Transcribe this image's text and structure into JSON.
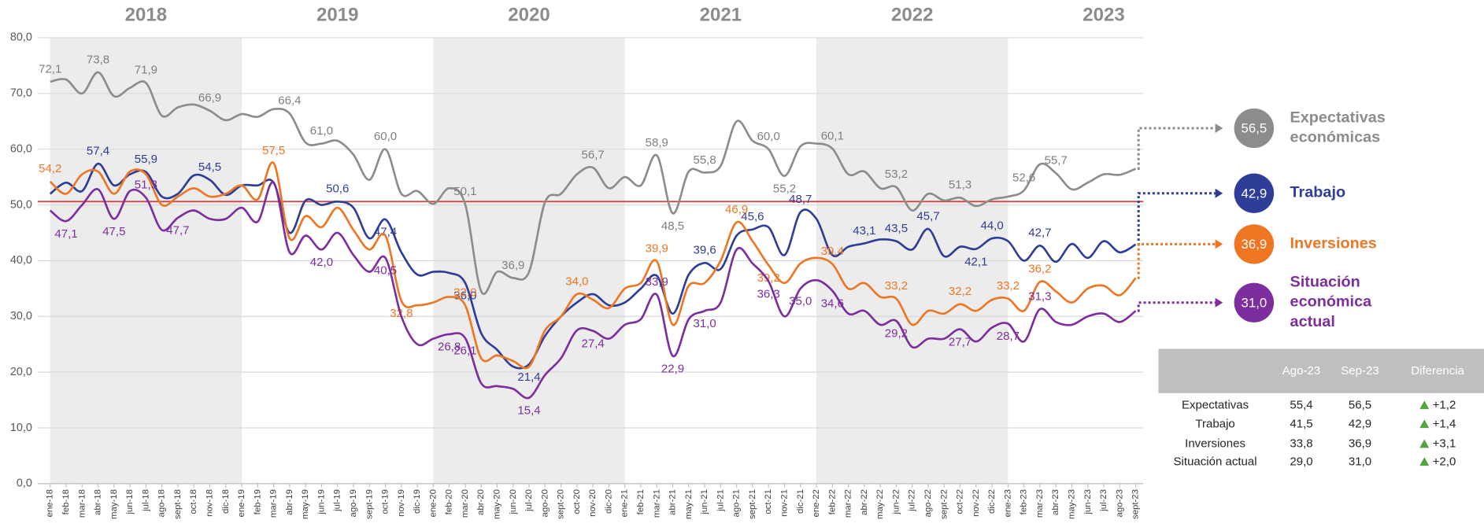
{
  "chart_data": {
    "type": "line",
    "year_labels": [
      "2018",
      "2019",
      "2020",
      "2021",
      "2022",
      "2023"
    ],
    "categories": [
      "ene-18",
      "feb-18",
      "mar-18",
      "abr-18",
      "may-18",
      "jun-18",
      "jul-18",
      "ago-18",
      "sept-18",
      "oct-18",
      "nov-18",
      "dic-18",
      "ene-19",
      "feb-19",
      "mar-19",
      "abr-19",
      "may-19",
      "jun-19",
      "jul-19",
      "ago-19",
      "sept-19",
      "oct-19",
      "nov-19",
      "dic-19",
      "ene-20",
      "feb-20",
      "mar-20",
      "abr-20",
      "may-20",
      "jun-20",
      "jul-20",
      "ago-20",
      "sept-20",
      "oct-20",
      "nov-20",
      "dic-20",
      "ene-21",
      "feb-21",
      "mar-21",
      "abr-21",
      "may-21",
      "jun-21",
      "jul-21",
      "ago-21",
      "sept-21",
      "oct-21",
      "nov-21",
      "dic-21",
      "ene-22",
      "feb-22",
      "mar-22",
      "abr-22",
      "may-22",
      "jun-22",
      "jul-22",
      "ago-22",
      "sept-22",
      "oct-22",
      "nov-22",
      "dic-22",
      "ene-23",
      "feb-23",
      "mar-23",
      "abr-23",
      "may-23",
      "jun-23",
      "jul-23",
      "ago-23",
      "sept-23"
    ],
    "ylim": [
      0,
      80
    ],
    "yticks": [
      {
        "value": 0,
        "label": "0,0"
      },
      {
        "value": 10,
        "label": "10,0"
      },
      {
        "value": 20,
        "label": "20,0"
      },
      {
        "value": 30,
        "label": "30,0"
      },
      {
        "value": 40,
        "label": "40,0"
      },
      {
        "value": 50,
        "label": "50,0"
      },
      {
        "value": 60,
        "label": "60,0"
      },
      {
        "value": 70,
        "label": "70,0"
      },
      {
        "value": 80,
        "label": "80,0"
      }
    ],
    "grid": true,
    "reference_line": 50.6,
    "reference_color": "#e03c3c",
    "series": [
      {
        "name": "Expectativas económicas",
        "color": "#8c8c8c",
        "values": [
          72.1,
          72.5,
          70.0,
          73.8,
          69.5,
          71.0,
          71.9,
          66.0,
          67.5,
          68.0,
          66.9,
          65.2,
          66.3,
          65.8,
          67.2,
          66.4,
          61.2,
          61.0,
          61.5,
          59.0,
          54.5,
          60.0,
          52.0,
          52.5,
          50.2,
          53.0,
          50.1,
          34.5,
          38.0,
          36.9,
          38.0,
          50.5,
          52.0,
          55.5,
          56.7,
          53.0,
          55.0,
          53.5,
          58.9,
          48.5,
          56.0,
          55.8,
          57.0,
          65.0,
          61.5,
          60.0,
          55.2,
          60.5,
          61.0,
          60.1,
          55.5,
          56.0,
          53.0,
          53.2,
          49.0,
          52.0,
          50.8,
          51.3,
          49.8,
          51.0,
          51.5,
          52.6,
          57.3,
          55.7,
          52.8,
          54.0,
          55.5,
          55.4,
          56.5
        ],
        "value_labels": [
          "72,1",
          null,
          null,
          "73,8",
          null,
          null,
          "71,9",
          null,
          null,
          null,
          "66,9",
          null,
          null,
          null,
          null,
          "66,4",
          null,
          "61,0",
          null,
          null,
          null,
          "60,0",
          null,
          null,
          null,
          null,
          "50,1",
          null,
          null,
          "36,9",
          null,
          null,
          null,
          null,
          "56,7",
          null,
          null,
          null,
          "58,9",
          "48,5",
          null,
          "55,8",
          null,
          null,
          null,
          "60,0",
          "55,2",
          null,
          null,
          "60,1",
          null,
          null,
          null,
          "53,2",
          null,
          null,
          null,
          "51,3",
          null,
          null,
          null,
          "52,6",
          null,
          "55,7",
          null,
          null,
          null,
          null,
          "56,5"
        ]
      },
      {
        "name": "Trabajo",
        "color": "#2e3d98",
        "values": [
          52.0,
          54.0,
          52.5,
          57.4,
          53.5,
          55.5,
          55.9,
          51.5,
          52.0,
          55.3,
          54.5,
          51.8,
          53.5,
          53.5,
          54.0,
          45.0,
          50.8,
          50.0,
          50.6,
          49.5,
          44.0,
          47.4,
          41.5,
          37.5,
          38.0,
          37.8,
          36.0,
          27.0,
          24.0,
          21.0,
          21.4,
          26.5,
          30.0,
          32.5,
          34.0,
          32.0,
          32.5,
          35.0,
          37.3,
          30.5,
          37.5,
          39.6,
          38.5,
          44.5,
          45.6,
          46.0,
          41.0,
          48.7,
          47.5,
          41.0,
          42.5,
          43.1,
          43.8,
          43.5,
          42.0,
          45.7,
          40.8,
          42.5,
          42.1,
          44.0,
          43.5,
          40.0,
          42.7,
          39.8,
          43.0,
          40.5,
          43.5,
          41.5,
          42.9
        ],
        "value_labels": [
          null,
          null,
          null,
          "57,4",
          null,
          null,
          "55,9",
          null,
          null,
          null,
          "54,5",
          null,
          null,
          null,
          null,
          null,
          null,
          null,
          "50,6",
          null,
          null,
          "47,4",
          null,
          null,
          null,
          null,
          "36,0",
          null,
          null,
          null,
          "21,4",
          null,
          null,
          null,
          null,
          null,
          null,
          null,
          null,
          null,
          null,
          "39,6",
          null,
          null,
          "45,6",
          null,
          null,
          "48,7",
          null,
          null,
          null,
          "43,1",
          null,
          "43,5",
          null,
          "45,7",
          null,
          null,
          "42,1",
          "44,0",
          null,
          null,
          "42,7",
          null,
          null,
          null,
          null,
          null,
          "42,9"
        ]
      },
      {
        "name": "Inversiones",
        "color": "#ee7623",
        "values": [
          54.2,
          52.0,
          55.5,
          56.0,
          52.0,
          56.0,
          55.5,
          50.0,
          51.5,
          53.0,
          51.5,
          52.0,
          53.5,
          51.0,
          57.5,
          44.0,
          48.0,
          46.0,
          49.5,
          45.5,
          42.0,
          44.5,
          32.8,
          32.0,
          32.5,
          33.5,
          32.0,
          22.5,
          23.0,
          22.0,
          21.0,
          27.5,
          30.0,
          34.0,
          33.0,
          31.5,
          35.0,
          36.0,
          39.9,
          28.5,
          35.5,
          36.0,
          40.0,
          46.9,
          43.5,
          39.2,
          36.0,
          39.5,
          40.5,
          39.4,
          35.0,
          36.0,
          33.5,
          33.2,
          28.5,
          31.0,
          30.5,
          32.2,
          31.0,
          33.0,
          33.2,
          31.0,
          36.2,
          34.5,
          32.5,
          35.0,
          35.5,
          33.8,
          36.9
        ],
        "value_labels": [
          "54,2",
          null,
          null,
          null,
          null,
          null,
          null,
          null,
          null,
          null,
          null,
          null,
          null,
          null,
          "57,5",
          null,
          null,
          null,
          null,
          null,
          null,
          null,
          "32,8",
          null,
          null,
          null,
          "32,0",
          null,
          null,
          null,
          null,
          null,
          null,
          "34,0",
          null,
          null,
          null,
          null,
          "39,9",
          null,
          null,
          null,
          null,
          "46,9",
          null,
          "39,2",
          null,
          null,
          null,
          "39,4",
          null,
          null,
          null,
          "33,2",
          null,
          null,
          null,
          "32,2",
          null,
          null,
          "33,2",
          null,
          "36,2",
          null,
          null,
          null,
          null,
          null,
          "36,9"
        ]
      },
      {
        "name": "Situación económica actual",
        "color": "#7d2e9e",
        "values": [
          49.0,
          47.1,
          50.0,
          52.8,
          47.5,
          52.5,
          51.3,
          45.5,
          47.7,
          49.0,
          47.5,
          47.5,
          49.5,
          47.0,
          54.0,
          41.5,
          44.5,
          42.0,
          45.0,
          41.0,
          38.0,
          40.5,
          30.0,
          25.0,
          26.0,
          26.8,
          26.1,
          18.0,
          17.5,
          17.0,
          15.4,
          19.5,
          22.5,
          27.5,
          27.4,
          26.0,
          28.5,
          29.5,
          33.9,
          22.9,
          29.5,
          31.0,
          32.5,
          42.0,
          39.5,
          36.3,
          30.0,
          35.0,
          36.5,
          34.6,
          30.5,
          31.0,
          28.5,
          29.2,
          24.5,
          26.0,
          26.0,
          27.7,
          25.5,
          28.0,
          28.7,
          25.5,
          31.3,
          29.0,
          28.5,
          30.0,
          30.5,
          29.0,
          31.0
        ],
        "value_labels": [
          null,
          "47,1",
          null,
          null,
          "47,5",
          null,
          "51,3",
          null,
          "47,7",
          null,
          null,
          null,
          null,
          null,
          null,
          null,
          null,
          "42,0",
          null,
          null,
          null,
          "40,5",
          null,
          null,
          null,
          "26,8",
          "26,1",
          null,
          null,
          null,
          "15,4",
          null,
          null,
          null,
          "27,4",
          null,
          null,
          null,
          "33,9",
          "22,9",
          null,
          "31,0",
          null,
          null,
          null,
          "36,3",
          null,
          "35,0",
          null,
          "34,6",
          null,
          null,
          null,
          "29,2",
          null,
          null,
          null,
          "27,7",
          null,
          null,
          "28,7",
          null,
          "31,3",
          null,
          null,
          null,
          null,
          null,
          "31,0"
        ]
      }
    ],
    "table": {
      "columns": [
        "Ago-23",
        "Sep-23",
        "Diferencia"
      ],
      "rows": [
        [
          "Expectativas",
          "55,4",
          "56,5",
          "+1,2"
        ],
        [
          "Trabajo",
          "41,5",
          "42,9",
          "+1,4"
        ],
        [
          "Inversiones",
          "33,8",
          "36,9",
          "+3,1"
        ],
        [
          "Situación actual",
          "29,0",
          "31,0",
          "+2,0"
        ]
      ]
    }
  }
}
